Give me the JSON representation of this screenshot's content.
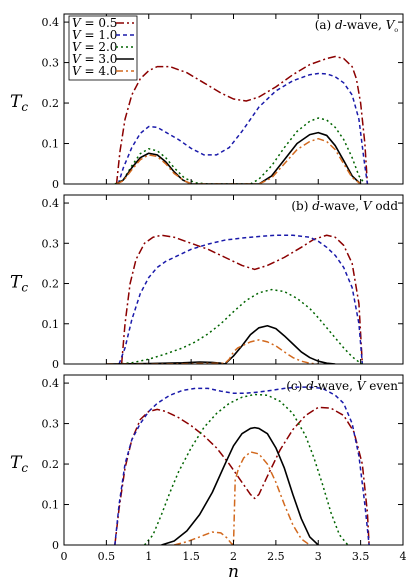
{
  "chart_data": [
    {
      "type": "line",
      "title": "(a) d-wave, V₀",
      "title_parts": [
        "(a) ",
        "d",
        "-wave, ",
        "V",
        "₀"
      ],
      "ylabel": "T_c",
      "ylabel_main": "T",
      "ylabel_sub": "c",
      "xlabel": "",
      "xlim": [
        0,
        4
      ],
      "ylim": [
        0,
        0.42
      ],
      "yticks": [
        0,
        0.1,
        0.2,
        0.3,
        0.4
      ],
      "yticklabels": [
        "0",
        "0.1",
        "0.2",
        "0.3",
        "0.4"
      ],
      "legend_position": "top-left",
      "series": [
        {
          "name": "V = 0.5",
          "label_var": "V",
          "label_val": " = 0.5",
          "color": "#8b0000",
          "dash": "8,3,2,3",
          "x": [
            0.62,
            0.66,
            0.72,
            0.8,
            0.9,
            1.0,
            1.1,
            1.25,
            1.45,
            1.65,
            1.85,
            2.0,
            2.15,
            2.3,
            2.5,
            2.7,
            2.9,
            3.1,
            3.2,
            3.3,
            3.4,
            3.45,
            3.5,
            3.55,
            3.58
          ],
          "y": [
            0,
            0.08,
            0.16,
            0.22,
            0.26,
            0.28,
            0.29,
            0.29,
            0.275,
            0.25,
            0.225,
            0.21,
            0.205,
            0.215,
            0.24,
            0.27,
            0.295,
            0.31,
            0.315,
            0.31,
            0.29,
            0.26,
            0.2,
            0.1,
            0
          ]
        },
        {
          "name": "V = 1.0",
          "label_var": "V",
          "label_val": " = 1.0",
          "color": "#1a1aaa",
          "dash": "4,3",
          "x": [
            0.64,
            0.7,
            0.8,
            0.9,
            1.0,
            1.1,
            1.2,
            1.35,
            1.5,
            1.65,
            1.8,
            1.95,
            2.1,
            2.3,
            2.5,
            2.7,
            2.9,
            3.0,
            3.1,
            3.2,
            3.3,
            3.4,
            3.48,
            3.54,
            3.58
          ],
          "y": [
            0,
            0.04,
            0.09,
            0.125,
            0.142,
            0.14,
            0.128,
            0.11,
            0.088,
            0.072,
            0.072,
            0.09,
            0.13,
            0.19,
            0.23,
            0.255,
            0.27,
            0.273,
            0.272,
            0.265,
            0.25,
            0.22,
            0.16,
            0.06,
            0
          ]
        },
        {
          "name": "V = 2.0",
          "label_var": "V",
          "label_val": " = 2.0",
          "color": "#006400",
          "dash": "2,3",
          "x": [
            0.6,
            0.7,
            0.8,
            0.9,
            1.0,
            1.1,
            1.2,
            1.3,
            1.42,
            1.55,
            1.7,
            2.2,
            2.3,
            2.45,
            2.6,
            2.75,
            2.9,
            3.0,
            3.1,
            3.2,
            3.3,
            3.4,
            3.48,
            3.55
          ],
          "y": [
            0,
            0.01,
            0.045,
            0.075,
            0.087,
            0.082,
            0.065,
            0.04,
            0.015,
            0.003,
            0,
            0,
            0.012,
            0.045,
            0.09,
            0.13,
            0.155,
            0.163,
            0.158,
            0.14,
            0.11,
            0.065,
            0.02,
            0
          ]
        },
        {
          "name": "V = 3.0",
          "label_var": "V",
          "label_val": " = 3.0",
          "color": "#000000",
          "dash": "",
          "x": [
            0.62,
            0.7,
            0.8,
            0.9,
            1.0,
            1.1,
            1.2,
            1.3,
            1.4,
            1.5,
            2.3,
            2.45,
            2.6,
            2.75,
            2.9,
            3.0,
            3.1,
            3.2,
            3.3,
            3.4,
            3.5
          ],
          "y": [
            0,
            0.01,
            0.04,
            0.065,
            0.076,
            0.072,
            0.055,
            0.03,
            0.01,
            0,
            0,
            0.02,
            0.06,
            0.1,
            0.122,
            0.127,
            0.12,
            0.095,
            0.058,
            0.02,
            0
          ]
        },
        {
          "name": "V = 4.0",
          "label_var": "V",
          "label_val": " = 4.0",
          "color": "#d2691e",
          "dash": "7,3,2,3",
          "x": [
            0.62,
            0.7,
            0.8,
            0.9,
            1.0,
            1.1,
            1.2,
            1.3,
            1.42,
            1.5,
            2.3,
            2.45,
            2.6,
            2.75,
            2.9,
            3.0,
            3.1,
            3.2,
            3.3,
            3.4,
            3.5
          ],
          "y": [
            0,
            0.008,
            0.035,
            0.06,
            0.072,
            0.068,
            0.05,
            0.026,
            0.008,
            0,
            0,
            0.015,
            0.05,
            0.085,
            0.105,
            0.112,
            0.105,
            0.085,
            0.05,
            0.016,
            0
          ]
        }
      ]
    },
    {
      "type": "line",
      "title": "(b) d-wave, V odd",
      "title_parts": [
        "(b) ",
        "d",
        "-wave, ",
        "V",
        " odd"
      ],
      "ylabel": "T_c",
      "ylabel_main": "T",
      "ylabel_sub": "c",
      "xlabel": "",
      "xlim": [
        0,
        4
      ],
      "ylim": [
        0,
        0.42
      ],
      "yticks": [
        0,
        0.1,
        0.2,
        0.3,
        0.4
      ],
      "yticklabels": [
        "0",
        "0.1",
        "0.2",
        "0.3",
        "0.4"
      ],
      "series": [
        {
          "name": "V = 0.5",
          "color": "#8b0000",
          "dash": "8,3,2,3",
          "x": [
            0.68,
            0.72,
            0.78,
            0.85,
            0.95,
            1.05,
            1.15,
            1.3,
            1.5,
            1.7,
            1.9,
            2.1,
            2.25,
            2.4,
            2.6,
            2.8,
            2.95,
            3.1,
            3.2,
            3.3,
            3.4,
            3.48,
            3.52
          ],
          "y": [
            0,
            0.1,
            0.2,
            0.26,
            0.3,
            0.315,
            0.32,
            0.315,
            0.3,
            0.285,
            0.265,
            0.245,
            0.235,
            0.245,
            0.265,
            0.29,
            0.31,
            0.32,
            0.315,
            0.295,
            0.25,
            0.15,
            0
          ]
        },
        {
          "name": "V = 1.0",
          "color": "#1a1aaa",
          "dash": "4,3",
          "x": [
            0.65,
            0.72,
            0.8,
            0.9,
            1.0,
            1.1,
            1.2,
            1.35,
            1.5,
            1.7,
            1.9,
            2.1,
            2.3,
            2.5,
            2.7,
            2.9,
            3.0,
            3.1,
            3.2,
            3.3,
            3.4,
            3.48,
            3.52
          ],
          "y": [
            0,
            0.04,
            0.11,
            0.175,
            0.215,
            0.24,
            0.255,
            0.27,
            0.285,
            0.298,
            0.308,
            0.313,
            0.317,
            0.32,
            0.32,
            0.315,
            0.305,
            0.29,
            0.27,
            0.24,
            0.19,
            0.1,
            0
          ]
        },
        {
          "name": "V = 2.0",
          "color": "#006400",
          "dash": "2,3",
          "x": [
            0.62,
            0.8,
            1.0,
            1.2,
            1.4,
            1.55,
            1.7,
            1.85,
            2.0,
            2.15,
            2.3,
            2.45,
            2.6,
            2.75,
            2.9,
            3.0,
            3.1,
            3.2,
            3.3,
            3.4,
            3.48,
            3.52
          ],
          "y": [
            0,
            0.003,
            0.012,
            0.025,
            0.04,
            0.055,
            0.075,
            0.1,
            0.13,
            0.158,
            0.177,
            0.185,
            0.18,
            0.163,
            0.138,
            0.115,
            0.09,
            0.065,
            0.04,
            0.018,
            0.005,
            0
          ]
        },
        {
          "name": "V = 3.0",
          "color": "#000000",
          "dash": "",
          "x": [
            0.5,
            1.0,
            1.4,
            1.6,
            1.75,
            1.85,
            1.9,
            2.0,
            2.1,
            2.2,
            2.3,
            2.4,
            2.5,
            2.6,
            2.7,
            2.8,
            2.9,
            3.0,
            3.1,
            3.2
          ],
          "y": [
            0,
            0.001,
            0.003,
            0.005,
            0.004,
            0.002,
            0,
            0.02,
            0.045,
            0.073,
            0.09,
            0.095,
            0.088,
            0.07,
            0.05,
            0.03,
            0.016,
            0.007,
            0.002,
            0
          ]
        },
        {
          "name": "V = 4.0",
          "color": "#d2691e",
          "dash": "7,3,2,3",
          "x": [
            0.5,
            1.0,
            1.5,
            1.9,
            1.95,
            2.0,
            2.05,
            2.1,
            2.2,
            2.3,
            2.4,
            2.5,
            2.6,
            2.7,
            2.8,
            2.9,
            3.0
          ],
          "y": [
            0,
            0.0,
            0.001,
            0.002,
            0.012,
            0.03,
            0.04,
            0.045,
            0.055,
            0.06,
            0.055,
            0.045,
            0.03,
            0.016,
            0.007,
            0.002,
            0
          ]
        }
      ]
    },
    {
      "type": "line",
      "title": "(c) d-wave, V even",
      "title_parts": [
        "(c) ",
        "d",
        "-wave, ",
        "V",
        " even"
      ],
      "ylabel": "T_c",
      "ylabel_main": "T",
      "ylabel_sub": "c",
      "xlabel": "n",
      "xlim": [
        0,
        4
      ],
      "ylim": [
        0,
        0.42
      ],
      "xticks": [
        0,
        0.5,
        1,
        1.5,
        2,
        2.5,
        3,
        3.5,
        4
      ],
      "xticklabels": [
        "0",
        "0.5",
        "1",
        "1.5",
        "2",
        "2.5",
        "3",
        "3.5",
        "4"
      ],
      "yticks": [
        0,
        0.1,
        0.2,
        0.3,
        0.4
      ],
      "yticklabels": [
        "0",
        "0.1",
        "0.2",
        "0.3",
        "0.4"
      ],
      "series": [
        {
          "name": "V = 0.5",
          "color": "#8b0000",
          "dash": "8,3,2,3",
          "x": [
            0.6,
            0.65,
            0.72,
            0.8,
            0.9,
            1.0,
            1.1,
            1.2,
            1.35,
            1.5,
            1.65,
            1.8,
            1.95,
            2.1,
            2.2,
            2.25,
            2.3,
            2.4,
            2.55,
            2.7,
            2.85,
            3.0,
            3.15,
            3.3,
            3.42,
            3.52,
            3.58,
            3.6
          ],
          "y": [
            0,
            0.09,
            0.19,
            0.26,
            0.31,
            0.33,
            0.335,
            0.33,
            0.315,
            0.295,
            0.27,
            0.24,
            0.2,
            0.155,
            0.125,
            0.115,
            0.125,
            0.17,
            0.235,
            0.285,
            0.32,
            0.34,
            0.338,
            0.32,
            0.28,
            0.2,
            0.08,
            0
          ]
        },
        {
          "name": "V = 1.0",
          "color": "#1a1aaa",
          "dash": "4,3",
          "x": [
            0.6,
            0.65,
            0.72,
            0.8,
            0.9,
            1.0,
            1.1,
            1.25,
            1.4,
            1.55,
            1.7,
            1.85,
            2.0,
            2.15,
            2.3,
            2.45,
            2.6,
            2.75,
            2.9,
            3.05,
            3.2,
            3.3,
            3.4,
            3.48,
            3.55,
            3.6
          ],
          "y": [
            0,
            0.1,
            0.2,
            0.26,
            0.3,
            0.33,
            0.35,
            0.37,
            0.382,
            0.387,
            0.387,
            0.38,
            0.375,
            0.375,
            0.378,
            0.382,
            0.387,
            0.39,
            0.39,
            0.387,
            0.37,
            0.35,
            0.3,
            0.22,
            0.1,
            0
          ]
        },
        {
          "name": "V = 2.0",
          "color": "#006400",
          "dash": "2,3",
          "x": [
            0.95,
            1.05,
            1.15,
            1.25,
            1.35,
            1.5,
            1.65,
            1.8,
            1.95,
            2.1,
            2.25,
            2.4,
            2.55,
            2.7,
            2.85,
            2.95,
            3.05,
            3.15,
            3.25,
            3.35
          ],
          "y": [
            0,
            0.025,
            0.075,
            0.13,
            0.18,
            0.24,
            0.29,
            0.325,
            0.35,
            0.365,
            0.372,
            0.37,
            0.355,
            0.325,
            0.27,
            0.215,
            0.15,
            0.08,
            0.025,
            0
          ]
        },
        {
          "name": "V = 3.0",
          "color": "#000000",
          "dash": "",
          "x": [
            1.15,
            1.3,
            1.45,
            1.6,
            1.75,
            1.9,
            2.0,
            2.1,
            2.2,
            2.25,
            2.3,
            2.4,
            2.5,
            2.6,
            2.7,
            2.8,
            2.9,
            3.0
          ],
          "y": [
            0,
            0.01,
            0.035,
            0.075,
            0.13,
            0.2,
            0.245,
            0.275,
            0.288,
            0.29,
            0.288,
            0.275,
            0.24,
            0.19,
            0.125,
            0.065,
            0.02,
            0
          ]
        },
        {
          "name": "V = 4.0",
          "color": "#d2691e",
          "dash": "7,3,2,3",
          "x": [
            1.3,
            1.45,
            1.6,
            1.75,
            1.85,
            1.92,
            1.97,
            2.0,
            2.02,
            2.06,
            2.12,
            2.2,
            2.3,
            2.4,
            2.5,
            2.6,
            2.7,
            2.8,
            2.9
          ],
          "y": [
            0,
            0.008,
            0.02,
            0.032,
            0.03,
            0.018,
            0.005,
            0,
            0.16,
            0.19,
            0.215,
            0.23,
            0.225,
            0.2,
            0.155,
            0.1,
            0.05,
            0.015,
            0
          ]
        }
      ]
    }
  ]
}
